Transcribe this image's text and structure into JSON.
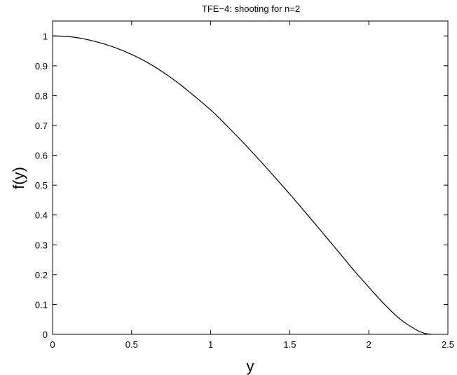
{
  "chart_data": {
    "type": "line",
    "title": "TFE−4: shooting for n=2",
    "xlabel": "y",
    "ylabel": "f(y)",
    "xlim": [
      0,
      2.5
    ],
    "ylim": [
      0,
      1.05
    ],
    "xticks": [
      0,
      0.5,
      1,
      1.5,
      2,
      2.5
    ],
    "xtick_labels": [
      "0",
      "0.5",
      "1",
      "1.5",
      "2",
      "2.5"
    ],
    "yticks": [
      0,
      0.1,
      0.2,
      0.3,
      0.4,
      0.5,
      0.6,
      0.7,
      0.8,
      0.9,
      1
    ],
    "ytick_labels": [
      "0",
      "0.1",
      "0.2",
      "0.3",
      "0.4",
      "0.5",
      "0.6",
      "0.7",
      "0.8",
      "0.9",
      "1"
    ],
    "grid": false,
    "line_color": "#000000",
    "series": [
      {
        "x": [
          0,
          0.1,
          0.2,
          0.3,
          0.4,
          0.5,
          0.6,
          0.7,
          0.8,
          0.9,
          1.0,
          1.1,
          1.2,
          1.3,
          1.4,
          1.5,
          1.6,
          1.7,
          1.8,
          1.9,
          2.0,
          2.1,
          2.2,
          2.3,
          2.35,
          2.395
        ],
        "y": [
          1.0,
          0.998,
          0.99,
          0.977,
          0.96,
          0.938,
          0.911,
          0.878,
          0.84,
          0.797,
          0.752,
          0.7,
          0.646,
          0.589,
          0.53,
          0.47,
          0.408,
          0.345,
          0.282,
          0.218,
          0.158,
          0.1,
          0.05,
          0.015,
          0.004,
          0.0
        ]
      }
    ]
  }
}
